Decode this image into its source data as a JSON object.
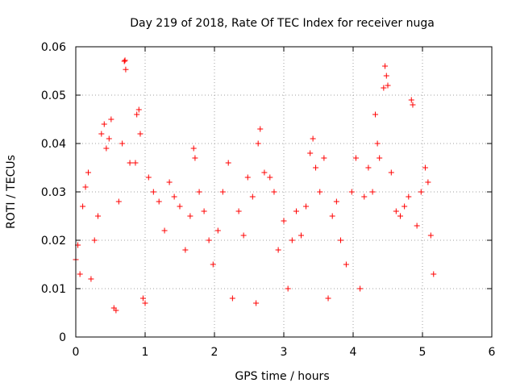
{
  "chart_data": {
    "type": "scatter",
    "title": "Day 219 of 2018, Rate Of TEC Index for receiver nuga",
    "xlabel": "GPS time / hours",
    "ylabel": "ROTI / TECUs",
    "xlim": [
      0,
      6
    ],
    "ylim": [
      0,
      0.06
    ],
    "xticks": [
      0,
      1,
      2,
      3,
      4,
      5,
      6
    ],
    "yticks": [
      0,
      0.01,
      0.02,
      0.03,
      0.04,
      0.05,
      0.06
    ],
    "xtick_labels": [
      "0",
      "1",
      "2",
      "3",
      "4",
      "5",
      "6"
    ],
    "ytick_labels": [
      "0",
      "0.01",
      "0.02",
      "0.03",
      "0.04",
      "0.05",
      "0.06"
    ],
    "grid": true,
    "marker": "+",
    "color": "#ff0000",
    "data_gaps_hours": [
      [
        2.27,
        2.33
      ],
      [
        5.18,
        6.0
      ]
    ],
    "series": [
      {
        "name": "ROTI",
        "approx_time_range_hours": [
          0.0,
          5.17
        ],
        "typical_band": [
          0.008,
          0.035
        ],
        "points": [
          [
            0.0,
            0.016
          ],
          [
            0.03,
            0.019
          ],
          [
            0.06,
            0.013
          ],
          [
            0.1,
            0.027
          ],
          [
            0.14,
            0.031
          ],
          [
            0.18,
            0.034
          ],
          [
            0.22,
            0.012
          ],
          [
            0.27,
            0.02
          ],
          [
            0.32,
            0.025
          ],
          [
            0.37,
            0.042
          ],
          [
            0.41,
            0.044
          ],
          [
            0.44,
            0.039
          ],
          [
            0.48,
            0.041
          ],
          [
            0.51,
            0.045
          ],
          [
            0.55,
            0.006
          ],
          [
            0.58,
            0.0055
          ],
          [
            0.62,
            0.028
          ],
          [
            0.67,
            0.04
          ],
          [
            0.7,
            0.057
          ],
          [
            0.71,
            0.0572
          ],
          [
            0.72,
            0.0553
          ],
          [
            0.78,
            0.036
          ],
          [
            0.86,
            0.036
          ],
          [
            0.88,
            0.046
          ],
          [
            0.91,
            0.047
          ],
          [
            0.93,
            0.042
          ],
          [
            0.97,
            0.008
          ],
          [
            1.0,
            0.007
          ],
          [
            1.05,
            0.033
          ],
          [
            1.12,
            0.03
          ],
          [
            1.2,
            0.028
          ],
          [
            1.28,
            0.022
          ],
          [
            1.35,
            0.032
          ],
          [
            1.42,
            0.029
          ],
          [
            1.5,
            0.027
          ],
          [
            1.58,
            0.018
          ],
          [
            1.65,
            0.025
          ],
          [
            1.7,
            0.039
          ],
          [
            1.72,
            0.037
          ],
          [
            1.78,
            0.03
          ],
          [
            1.85,
            0.026
          ],
          [
            1.92,
            0.02
          ],
          [
            1.98,
            0.015
          ],
          [
            2.05,
            0.022
          ],
          [
            2.12,
            0.03
          ],
          [
            2.2,
            0.036
          ],
          [
            2.26,
            0.008
          ],
          [
            2.35,
            0.026
          ],
          [
            2.42,
            0.021
          ],
          [
            2.48,
            0.033
          ],
          [
            2.55,
            0.029
          ],
          [
            2.6,
            0.007
          ],
          [
            2.63,
            0.04
          ],
          [
            2.66,
            0.043
          ],
          [
            2.72,
            0.034
          ],
          [
            2.8,
            0.033
          ],
          [
            2.86,
            0.03
          ],
          [
            2.92,
            0.018
          ],
          [
            3.0,
            0.024
          ],
          [
            3.06,
            0.01
          ],
          [
            3.12,
            0.02
          ],
          [
            3.18,
            0.026
          ],
          [
            3.25,
            0.021
          ],
          [
            3.32,
            0.027
          ],
          [
            3.38,
            0.038
          ],
          [
            3.42,
            0.041
          ],
          [
            3.46,
            0.035
          ],
          [
            3.52,
            0.03
          ],
          [
            3.58,
            0.037
          ],
          [
            3.64,
            0.008
          ],
          [
            3.7,
            0.025
          ],
          [
            3.76,
            0.028
          ],
          [
            3.82,
            0.02
          ],
          [
            3.9,
            0.015
          ],
          [
            3.98,
            0.03
          ],
          [
            4.04,
            0.037
          ],
          [
            4.1,
            0.01
          ],
          [
            4.16,
            0.029
          ],
          [
            4.22,
            0.035
          ],
          [
            4.28,
            0.03
          ],
          [
            4.32,
            0.046
          ],
          [
            4.35,
            0.04
          ],
          [
            4.38,
            0.037
          ],
          [
            4.44,
            0.0515
          ],
          [
            4.46,
            0.056
          ],
          [
            4.48,
            0.054
          ],
          [
            4.5,
            0.052
          ],
          [
            4.55,
            0.034
          ],
          [
            4.62,
            0.026
          ],
          [
            4.68,
            0.025
          ],
          [
            4.74,
            0.027
          ],
          [
            4.8,
            0.029
          ],
          [
            4.84,
            0.049
          ],
          [
            4.86,
            0.048
          ],
          [
            4.92,
            0.023
          ],
          [
            4.98,
            0.03
          ],
          [
            5.04,
            0.035
          ],
          [
            5.08,
            0.032
          ],
          [
            5.12,
            0.021
          ],
          [
            5.16,
            0.013
          ]
        ]
      }
    ]
  }
}
